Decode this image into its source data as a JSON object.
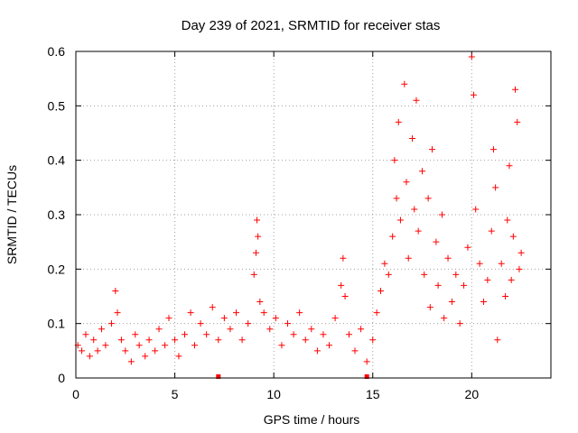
{
  "chart_data": {
    "type": "scatter",
    "title": "Day 239 of 2021, SRMTID for receiver stas",
    "xlabel": "GPS time / hours",
    "ylabel": "SRMTID / TECUs",
    "xlim": [
      0,
      24
    ],
    "ylim": [
      0,
      0.6
    ],
    "xticks": [
      0,
      5,
      10,
      15,
      20
    ],
    "yticks": [
      0,
      0.1,
      0.2,
      0.3,
      0.4,
      0.5,
      0.6
    ],
    "xtick_labels": [
      "0",
      "5",
      "10",
      "15",
      "20"
    ],
    "ytick_labels": [
      "0",
      "0.1",
      "0.2",
      "0.3",
      "0.4",
      "0.5",
      "0.6"
    ],
    "grid": true,
    "marker": "plus",
    "series_color": "#ff0000",
    "series": [
      {
        "name": "stas",
        "points": [
          [
            0.1,
            0.06
          ],
          [
            0.3,
            0.05
          ],
          [
            0.5,
            0.08
          ],
          [
            0.7,
            0.04
          ],
          [
            0.9,
            0.07
          ],
          [
            1.1,
            0.05
          ],
          [
            1.3,
            0.09
          ],
          [
            1.5,
            0.06
          ],
          [
            1.8,
            0.1
          ],
          [
            2.0,
            0.16
          ],
          [
            2.1,
            0.12
          ],
          [
            2.3,
            0.07
          ],
          [
            2.5,
            0.05
          ],
          [
            2.8,
            0.03
          ],
          [
            3.0,
            0.08
          ],
          [
            3.2,
            0.06
          ],
          [
            3.5,
            0.04
          ],
          [
            3.7,
            0.07
          ],
          [
            4.0,
            0.05
          ],
          [
            4.2,
            0.09
          ],
          [
            4.5,
            0.06
          ],
          [
            4.7,
            0.11
          ],
          [
            5.0,
            0.07
          ],
          [
            5.2,
            0.04
          ],
          [
            5.5,
            0.08
          ],
          [
            5.8,
            0.12
          ],
          [
            6.0,
            0.06
          ],
          [
            6.3,
            0.1
          ],
          [
            6.6,
            0.08
          ],
          [
            6.9,
            0.13
          ],
          [
            7.2,
            0.07
          ],
          [
            7.5,
            0.11
          ],
          [
            7.8,
            0.09
          ],
          [
            8.1,
            0.12
          ],
          [
            8.4,
            0.07
          ],
          [
            8.7,
            0.1
          ],
          [
            9.0,
            0.19
          ],
          [
            9.1,
            0.23
          ],
          [
            9.15,
            0.29
          ],
          [
            9.2,
            0.26
          ],
          [
            9.3,
            0.14
          ],
          [
            9.5,
            0.12
          ],
          [
            9.8,
            0.09
          ],
          [
            10.1,
            0.11
          ],
          [
            10.4,
            0.06
          ],
          [
            10.7,
            0.1
          ],
          [
            11.0,
            0.08
          ],
          [
            11.3,
            0.12
          ],
          [
            11.6,
            0.07
          ],
          [
            11.9,
            0.09
          ],
          [
            12.2,
            0.05
          ],
          [
            12.5,
            0.08
          ],
          [
            12.8,
            0.06
          ],
          [
            13.1,
            0.11
          ],
          [
            13.4,
            0.17
          ],
          [
            13.5,
            0.22
          ],
          [
            13.6,
            0.15
          ],
          [
            13.8,
            0.08
          ],
          [
            14.1,
            0.05
          ],
          [
            14.4,
            0.09
          ],
          [
            14.7,
            0.03
          ],
          [
            15.0,
            0.07
          ],
          [
            15.2,
            0.12
          ],
          [
            15.4,
            0.16
          ],
          [
            15.6,
            0.21
          ],
          [
            15.8,
            0.19
          ],
          [
            16.0,
            0.26
          ],
          [
            16.1,
            0.4
          ],
          [
            16.2,
            0.33
          ],
          [
            16.3,
            0.47
          ],
          [
            16.4,
            0.29
          ],
          [
            16.6,
            0.54
          ],
          [
            16.7,
            0.36
          ],
          [
            16.8,
            0.22
          ],
          [
            17.0,
            0.44
          ],
          [
            17.1,
            0.31
          ],
          [
            17.2,
            0.51
          ],
          [
            17.3,
            0.27
          ],
          [
            17.5,
            0.38
          ],
          [
            17.6,
            0.19
          ],
          [
            17.8,
            0.33
          ],
          [
            17.9,
            0.13
          ],
          [
            18.0,
            0.42
          ],
          [
            18.2,
            0.25
          ],
          [
            18.3,
            0.17
          ],
          [
            18.5,
            0.3
          ],
          [
            18.6,
            0.11
          ],
          [
            18.8,
            0.22
          ],
          [
            19.0,
            0.14
          ],
          [
            19.2,
            0.19
          ],
          [
            19.4,
            0.1
          ],
          [
            19.6,
            0.17
          ],
          [
            19.8,
            0.24
          ],
          [
            20.0,
            0.59
          ],
          [
            20.1,
            0.52
          ],
          [
            20.2,
            0.31
          ],
          [
            20.4,
            0.21
          ],
          [
            20.6,
            0.14
          ],
          [
            20.8,
            0.18
          ],
          [
            21.0,
            0.27
          ],
          [
            21.1,
            0.42
          ],
          [
            21.2,
            0.35
          ],
          [
            21.3,
            0.07
          ],
          [
            21.5,
            0.21
          ],
          [
            21.7,
            0.15
          ],
          [
            21.8,
            0.29
          ],
          [
            21.9,
            0.39
          ],
          [
            22.0,
            0.18
          ],
          [
            22.1,
            0.26
          ],
          [
            22.2,
            0.53
          ],
          [
            22.3,
            0.47
          ],
          [
            22.4,
            0.2
          ],
          [
            22.5,
            0.23
          ]
        ]
      }
    ],
    "gap_markers_x": [
      7.2,
      14.7
    ]
  }
}
